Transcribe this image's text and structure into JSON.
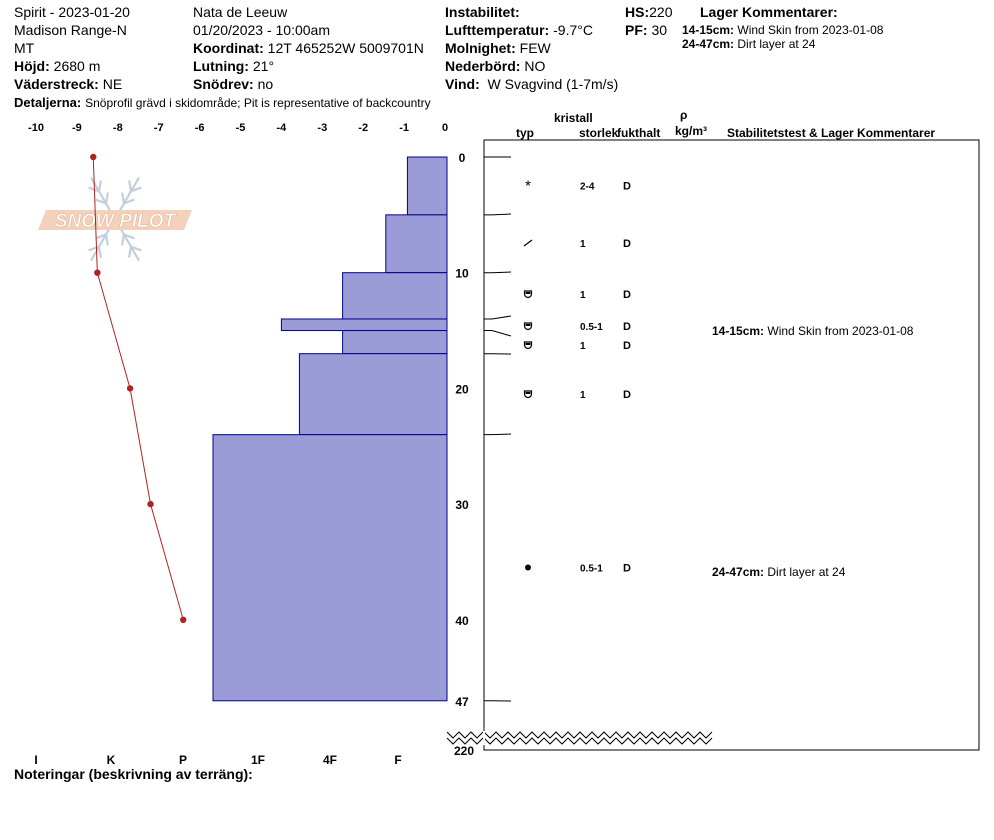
{
  "header": {
    "site": "Spirit - 2023-01-20",
    "range": "Madison Range-N",
    "state": "MT",
    "elevation_label": "Höjd:",
    "elevation_value": "2680 m",
    "aspect_label": "Väderstreck:",
    "aspect_value": "NE",
    "observer": "Nata de Leeuw",
    "datetime": "01/20/2023 - 10:00am",
    "coord_label": "Koordinat:",
    "coord_value": "12T 465252W 5009701N",
    "slope_label": "Lutning:",
    "slope_value": "21°",
    "drift_label": "Snödrev:",
    "drift_value": "no",
    "instab_label": "Instabilitet:",
    "airtemp_label": "Lufttemperatur:",
    "airtemp_value": "-9.7°C",
    "sky_label": "Molnighet:",
    "sky_value": "FEW",
    "precip_label": "Nederbörd:",
    "precip_value": "NO",
    "wind_label": "Vind:",
    "wind_value": "W Svagvind (1-7m/s)",
    "hs_label": "HS:",
    "hs_value": "220",
    "pf_label": "PF:",
    "pf_value": "30",
    "details_label": "Detaljerna:",
    "details_value": "Snöprofil grävd i skidområde;  Pit is representative of backcountry",
    "layer_comments_title": "Lager Kommentarer:",
    "layer_comments": [
      {
        "range": "14-15cm:",
        "text": "Wind Skin from 2023-01-08"
      },
      {
        "range": "24-47cm:",
        "text": "Dirt layer at 24"
      }
    ],
    "notes_label": "Noteringar (beskrivning av terräng):"
  },
  "logo_text": "SNOW PILOT",
  "table": {
    "headers": {
      "crystal": "kristall",
      "type": "typ",
      "size": "storlek",
      "moisture": "fukthalt",
      "rho": "ρ",
      "density": "kg/m³",
      "stability": "Stabilitetstest & Lager Kommentarer"
    }
  },
  "chart_data": {
    "type": "snow_profile",
    "temperature_axis": {
      "range": [
        -10,
        0
      ],
      "ticks": [
        "-10",
        "-9",
        "-8",
        "-7",
        "-6",
        "-5",
        "-4",
        "-3",
        "-2",
        "-1",
        "0"
      ]
    },
    "hardness_axis": {
      "ticks": [
        "I",
        "K",
        "P",
        "1F",
        "4F",
        "F"
      ]
    },
    "depth_axis": {
      "range": [
        0,
        47
      ],
      "ticks": [
        "0",
        "10",
        "20",
        "30",
        "40",
        "47"
      ],
      "total_label": "220"
    },
    "temperature_profile": [
      {
        "depth": 0,
        "temp": -8.6
      },
      {
        "depth": 10,
        "temp": -8.5
      },
      {
        "depth": 20,
        "temp": -7.7
      },
      {
        "depth": 30,
        "temp": -7.2
      },
      {
        "depth": 40,
        "temp": -6.4
      }
    ],
    "layers": [
      {
        "top": 0,
        "bottom": 5,
        "hardness_fist": 1.1,
        "crystal": "*",
        "size": "2-4",
        "moisture": "D"
      },
      {
        "top": 5,
        "bottom": 10,
        "hardness_fist": 1.7,
        "crystal": "/",
        "size": "1",
        "moisture": "D"
      },
      {
        "top": 10,
        "bottom": 14,
        "hardness_fist": 2.9,
        "crystal": "facet-rounding",
        "size": "1",
        "moisture": "D"
      },
      {
        "top": 14,
        "bottom": 15,
        "hardness_fist": 4.6,
        "crystal": "facet-rounding",
        "size": "0.5-1",
        "moisture": "D"
      },
      {
        "top": 15,
        "bottom": 17,
        "hardness_fist": 2.9,
        "crystal": "facet-rounding",
        "size": "1",
        "moisture": "D"
      },
      {
        "top": 17,
        "bottom": 24,
        "hardness_fist": 4.1,
        "crystal": "facet-rounding",
        "size": "1",
        "moisture": "D"
      },
      {
        "top": 24,
        "bottom": 47,
        "hardness_fist": 6.5,
        "crystal": "round",
        "size": "0.5-1",
        "moisture": "D"
      }
    ],
    "comments": [
      {
        "depth": 15,
        "range": "14-15cm:",
        "text": "Wind Skin from 2023-01-08"
      },
      {
        "depth": 36,
        "range": "24-47cm:",
        "text": "Dirt layer at 24"
      }
    ]
  }
}
